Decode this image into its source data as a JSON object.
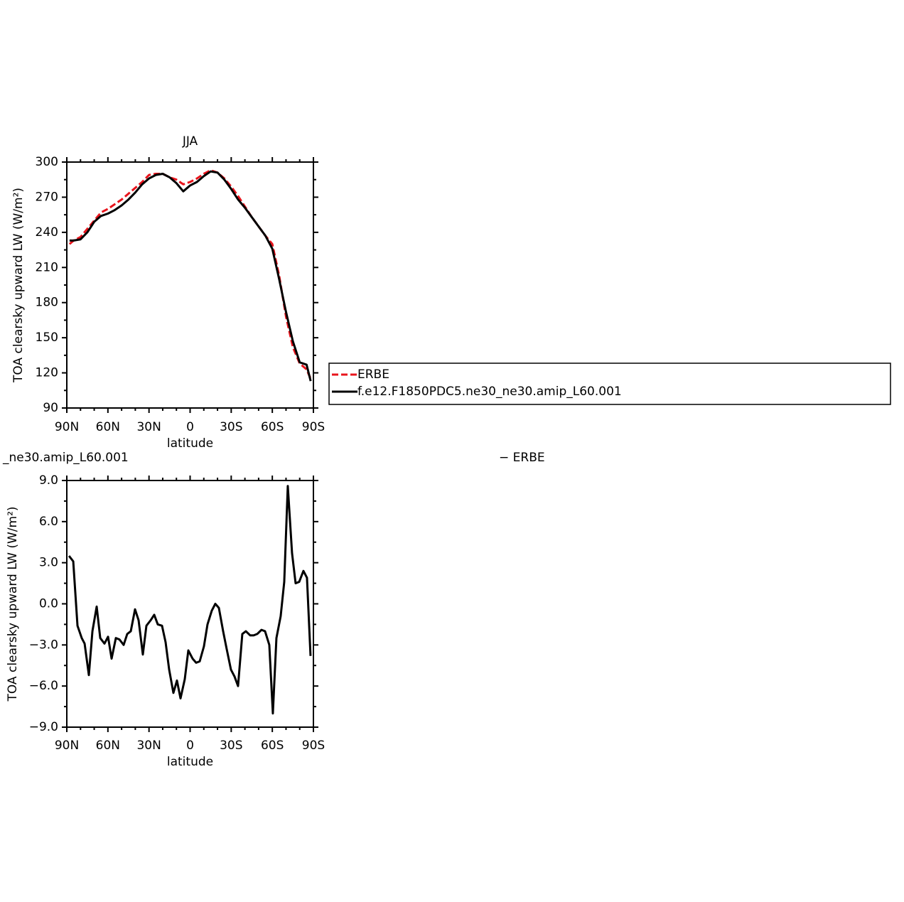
{
  "chart_data": [
    {
      "type": "line",
      "title": "JJA",
      "xlabel": "latitude",
      "ylabel": "TOA clearsky upward LW (W/m²)",
      "x": [
        88,
        85,
        80,
        75,
        70,
        65,
        60,
        55,
        50,
        45,
        40,
        35,
        30,
        25,
        20,
        15,
        10,
        5,
        0,
        -5,
        -10,
        -15,
        -20,
        -25,
        -30,
        -35,
        -40,
        -45,
        -50,
        -55,
        -60,
        -65,
        -70,
        -75,
        -80,
        -85,
        -88
      ],
      "series": [
        {
          "name": "ERBE",
          "color": "#e8141c",
          "line_style": "dashed",
          "values": [
            230,
            233,
            236,
            243,
            250,
            257,
            260,
            264,
            268,
            273,
            278,
            283,
            289,
            290,
            290,
            287,
            285,
            281,
            283,
            286,
            290,
            293,
            291,
            286,
            279,
            271,
            262,
            253,
            245,
            237,
            230,
            203,
            168,
            142,
            128,
            123,
            115
          ]
        },
        {
          "name": "f.e12.F1850PDC5.ne30_ne30.amip_L60.001",
          "color": "#000000",
          "line_style": "solid",
          "values": [
            233,
            233,
            234,
            240,
            249,
            254,
            256,
            259,
            263,
            268,
            274,
            281,
            286,
            289,
            290,
            287,
            282,
            275,
            280,
            283,
            288,
            292,
            291,
            285,
            277,
            268,
            261,
            253,
            245,
            237,
            226,
            200,
            172,
            147,
            129,
            127,
            113
          ]
        }
      ],
      "xlim": [
        90,
        -90
      ],
      "xticks": [
        {
          "value": 90,
          "label": "90N"
        },
        {
          "value": 60,
          "label": "60N"
        },
        {
          "value": 30,
          "label": "30N"
        },
        0,
        {
          "value": -30,
          "label": "30S"
        },
        {
          "value": -60,
          "label": "60S"
        },
        {
          "value": -90,
          "label": "90S"
        }
      ],
      "ylim": [
        90,
        300
      ],
      "yticks": [
        90,
        120,
        150,
        180,
        210,
        240,
        270,
        300
      ],
      "legend": "outside-right"
    },
    {
      "type": "line",
      "title_left": "_ne30.amip_L60.001",
      "title_right": "− ERBE",
      "xlabel": "latitude",
      "ylabel": "TOA clearsky upward LW (W/m²)",
      "x": [
        88.4,
        85.3,
        82.2,
        79.1,
        77,
        73.9,
        71.3,
        68.2,
        65.6,
        62.5,
        59.9,
        57.3,
        54.2,
        51.6,
        48.5,
        45.9,
        43.3,
        40.2,
        37.6,
        34.5,
        31.9,
        28.8,
        26.2,
        23.6,
        20.5,
        17.9,
        15.3,
        12.2,
        9.6,
        7,
        3.9,
        1.3,
        -1.8,
        -4.4,
        -7,
        -10.1,
        -12.7,
        -15.8,
        -18.4,
        -21,
        -24.1,
        -26.7,
        -29.8,
        -32.4,
        -35,
        -38.1,
        -40.7,
        -43.8,
        -46.4,
        -49,
        -52.1,
        -54.7,
        -57.8,
        -60.4,
        -63,
        -66.1,
        -68.7,
        -71.3,
        -74.4,
        -77,
        -79.6,
        -82.7,
        -85.3,
        -87.9
      ],
      "series": [
        {
          "color": "#000000",
          "line_style": "solid",
          "values": [
            3.5,
            3.1,
            -1.6,
            -2.5,
            -2.9,
            -5.2,
            -2.0,
            -0.2,
            -2.5,
            -2.9,
            -2.4,
            -4.0,
            -2.5,
            -2.6,
            -3.0,
            -2.2,
            -2.0,
            -0.4,
            -1.2,
            -3.7,
            -1.6,
            -1.2,
            -0.8,
            -1.5,
            -1.6,
            -2.8,
            -4.8,
            -6.5,
            -5.6,
            -6.9,
            -5.5,
            -3.4,
            -4.0,
            -4.3,
            -4.2,
            -3.1,
            -1.5,
            -0.5,
            0.0,
            -0.3,
            -2.0,
            -3.3,
            -4.8,
            -5.3,
            -6.0,
            -2.2,
            -2.0,
            -2.3,
            -2.3,
            -2.2,
            -1.9,
            -2.0,
            -3.0,
            -8.0,
            -2.5,
            -0.9,
            1.6,
            8.6,
            3.7,
            1.5,
            1.6,
            2.4,
            1.9,
            -3.8
          ]
        }
      ],
      "xlim": [
        90,
        -90
      ],
      "xticks": [
        {
          "value": 90,
          "label": "90N"
        },
        {
          "value": 60,
          "label": "60N"
        },
        {
          "value": 30,
          "label": "30N"
        },
        0,
        {
          "value": -30,
          "label": "30S"
        },
        {
          "value": -60,
          "label": "60S"
        },
        {
          "value": -90,
          "label": "90S"
        }
      ],
      "ylim": [
        -9,
        9
      ],
      "yticks": [
        {
          "value": -9,
          "label": "−9.0"
        },
        {
          "value": -6,
          "label": "−6.0"
        },
        {
          "value": -3,
          "label": "−3.0"
        },
        {
          "value": 0,
          "label": "0.0"
        },
        {
          "value": 3,
          "label": "3.0"
        },
        {
          "value": 6,
          "label": "6.0"
        },
        {
          "value": 9,
          "label": "9.0"
        }
      ]
    }
  ]
}
